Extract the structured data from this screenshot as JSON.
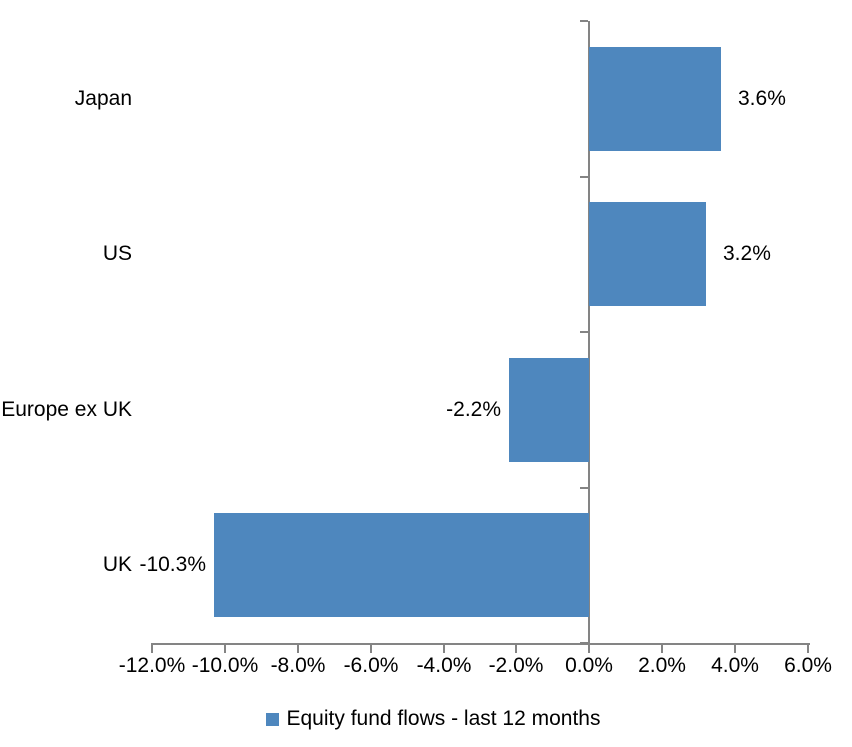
{
  "chart_data": {
    "type": "bar",
    "orientation": "horizontal",
    "title": "",
    "categories": [
      "Japan",
      "US",
      "Europe ex UK",
      "UK"
    ],
    "series": [
      {
        "name": "Equity fund flows - last 12 months",
        "values": [
          3.6,
          3.2,
          -2.2,
          -10.3
        ],
        "value_labels": [
          "3.6%",
          "3.2%",
          "-2.2%",
          "-10.3%"
        ],
        "color": "#4E87BE"
      }
    ],
    "xlim": [
      -12,
      6
    ],
    "x_tick_values": [
      -12,
      -10,
      -8,
      -6,
      -4,
      -2,
      0,
      2,
      4,
      6
    ],
    "x_tick_labels": [
      "-12.0%",
      "-10.0%",
      "-8.0%",
      "-6.0%",
      "-4.0%",
      "-2.0%",
      "0.0%",
      "2.0%",
      "4.0%",
      "6.0%"
    ],
    "grid": false,
    "legend_position": "bottom",
    "axis_color": "#848484",
    "text_color": "#000000",
    "background": "#FFFFFF"
  }
}
